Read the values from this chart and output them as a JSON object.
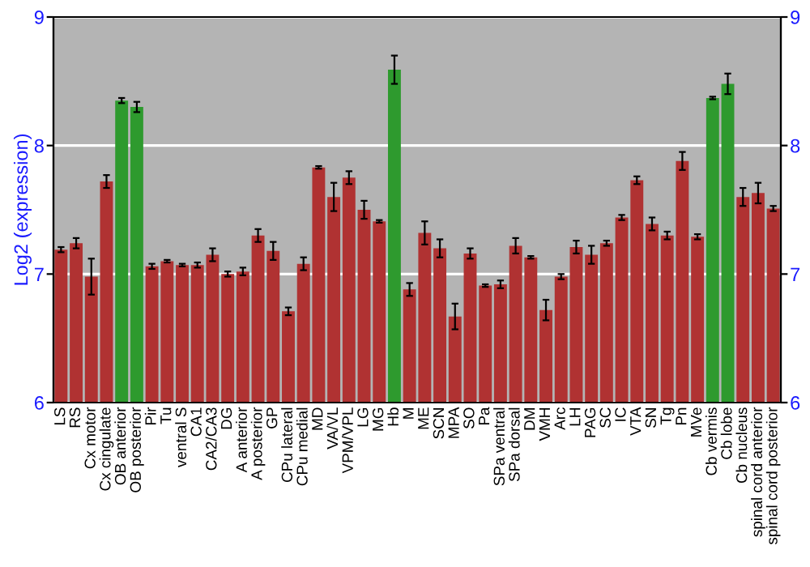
{
  "chart_data": {
    "type": "bar",
    "ylabel": "Log2 (expression)",
    "categories": [
      "LS",
      "RS",
      "Cx motor",
      "Cx cingulate",
      "OB anterior",
      "OB posterior",
      "Pir",
      "Tu",
      "ventral S",
      "CA1",
      "CA2/CA3",
      "DG",
      "A anterior",
      "A posterior",
      "GP",
      "CPu lateral",
      "CPu medial",
      "MD",
      "VA/VL",
      "VPM/VPL",
      "LG",
      "MG",
      "Hb",
      "M",
      "ME",
      "SCN",
      "MPA",
      "SO",
      "Pa",
      "SPa ventral",
      "SPa dorsal",
      "DM",
      "VMH",
      "Arc",
      "LH",
      "PAG",
      "SC",
      "IC",
      "VTA",
      "SN",
      "Tg",
      "Pn",
      "MVe",
      "Cb vermis",
      "Cb lobe",
      "Cb nucleus",
      "spinal cord anterior",
      "spinal cord posterior"
    ],
    "values": [
      7.19,
      7.24,
      6.98,
      7.72,
      8.35,
      8.3,
      7.06,
      7.1,
      7.07,
      7.07,
      7.15,
      7.0,
      7.02,
      7.3,
      7.18,
      6.71,
      7.08,
      7.83,
      7.6,
      7.75,
      7.5,
      7.41,
      8.59,
      6.88,
      7.32,
      7.2,
      6.67,
      7.16,
      6.91,
      6.92,
      7.22,
      7.13,
      6.72,
      6.98,
      7.21,
      7.15,
      7.24,
      7.44,
      7.73,
      7.39,
      7.3,
      7.88,
      7.29,
      8.37,
      8.48,
      7.6,
      7.63,
      7.51
    ],
    "errors": [
      0.02,
      0.04,
      0.14,
      0.05,
      0.02,
      0.04,
      0.02,
      0.01,
      0.01,
      0.02,
      0.05,
      0.02,
      0.03,
      0.05,
      0.07,
      0.03,
      0.05,
      0.01,
      0.11,
      0.05,
      0.07,
      0.01,
      0.11,
      0.05,
      0.09,
      0.07,
      0.1,
      0.04,
      0.01,
      0.03,
      0.06,
      0.01,
      0.08,
      0.02,
      0.05,
      0.07,
      0.02,
      0.02,
      0.03,
      0.05,
      0.03,
      0.07,
      0.02,
      0.01,
      0.08,
      0.07,
      0.08,
      0.02
    ],
    "colors": [
      "#b03232",
      "#b03232",
      "#b03232",
      "#b03232",
      "#2e9a2e",
      "#2e9a2e",
      "#b03232",
      "#b03232",
      "#b03232",
      "#b03232",
      "#b03232",
      "#b03232",
      "#b03232",
      "#b03232",
      "#b03232",
      "#b03232",
      "#b03232",
      "#b03232",
      "#b03232",
      "#b03232",
      "#b03232",
      "#b03232",
      "#2e9a2e",
      "#b03232",
      "#b03232",
      "#b03232",
      "#b03232",
      "#b03232",
      "#b03232",
      "#b03232",
      "#b03232",
      "#b03232",
      "#b03232",
      "#b03232",
      "#b03232",
      "#b03232",
      "#b03232",
      "#b03232",
      "#b03232",
      "#b03232",
      "#b03232",
      "#b03232",
      "#b03232",
      "#2e9a2e",
      "#2e9a2e",
      "#b03232",
      "#b03232",
      "#b03232"
    ],
    "ylim": [
      6,
      9
    ],
    "yticks": [
      6,
      7,
      8,
      9
    ],
    "y2lim": [
      6,
      9
    ],
    "y2ticks": [
      6,
      7,
      8,
      9
    ],
    "grid": "y"
  }
}
